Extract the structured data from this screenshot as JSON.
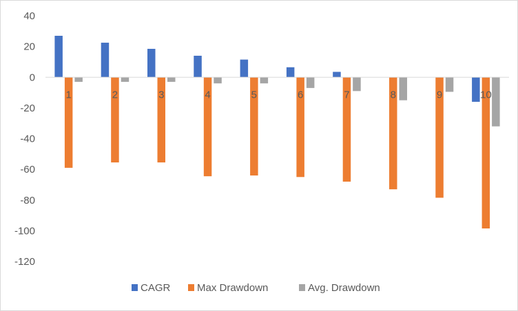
{
  "chart_data": {
    "type": "bar",
    "categories": [
      "1",
      "2",
      "3",
      "4",
      "5",
      "6",
      "7",
      "8",
      "9",
      "10"
    ],
    "series": [
      {
        "name": "CAGR",
        "color": "#4472c4",
        "values": [
          27,
          22.5,
          18.5,
          14,
          11.5,
          6.5,
          3.5,
          0,
          0,
          -16
        ]
      },
      {
        "name": "Max Drawdown",
        "color": "#ed7d31",
        "values": [
          -59,
          -55.5,
          -55.5,
          -64.5,
          -64,
          -65,
          -68,
          -73,
          -78.5,
          -98.5
        ]
      },
      {
        "name": "Avg. Drawdown",
        "color": "#a5a5a5",
        "values": [
          -3,
          -3,
          -3,
          -4,
          -4,
          -7,
          -9,
          -15,
          -9.5,
          -32
        ]
      }
    ],
    "y_ticks": [
      "40",
      "20",
      "0",
      "-20",
      "-40",
      "-60",
      "-80",
      "-100",
      "-120"
    ],
    "ylim": [
      -120,
      40
    ],
    "grid": false,
    "legend_position": "bottom"
  }
}
